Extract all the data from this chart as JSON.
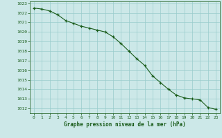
{
  "x": [
    0,
    1,
    2,
    3,
    4,
    5,
    6,
    7,
    8,
    9,
    10,
    11,
    12,
    13,
    14,
    15,
    16,
    17,
    18,
    19,
    20,
    21,
    22,
    23
  ],
  "y": [
    1022.5,
    1022.4,
    1022.2,
    1021.8,
    1021.2,
    1020.9,
    1020.6,
    1020.4,
    1020.2,
    1020.0,
    1019.5,
    1018.8,
    1018.0,
    1017.2,
    1016.5,
    1015.4,
    1014.7,
    1014.0,
    1013.4,
    1013.1,
    1013.0,
    1012.9,
    1012.1,
    1011.9
  ],
  "ylim": [
    1011.5,
    1023.2
  ],
  "xlim": [
    -0.5,
    23.5
  ],
  "yticks": [
    1012,
    1013,
    1014,
    1015,
    1016,
    1017,
    1018,
    1019,
    1020,
    1021,
    1022,
    1023
  ],
  "xticks": [
    0,
    1,
    2,
    3,
    4,
    5,
    6,
    7,
    8,
    9,
    10,
    11,
    12,
    13,
    14,
    15,
    16,
    17,
    18,
    19,
    20,
    21,
    22,
    23
  ],
  "xlabel": "Graphe pression niveau de la mer (hPa)",
  "line_color": "#1a5c1a",
  "marker": "+",
  "bg_color": "#cce8e8",
  "grid_color": "#99cccc",
  "axis_label_color": "#1a5c1a",
  "tick_label_color": "#1a5c1a"
}
